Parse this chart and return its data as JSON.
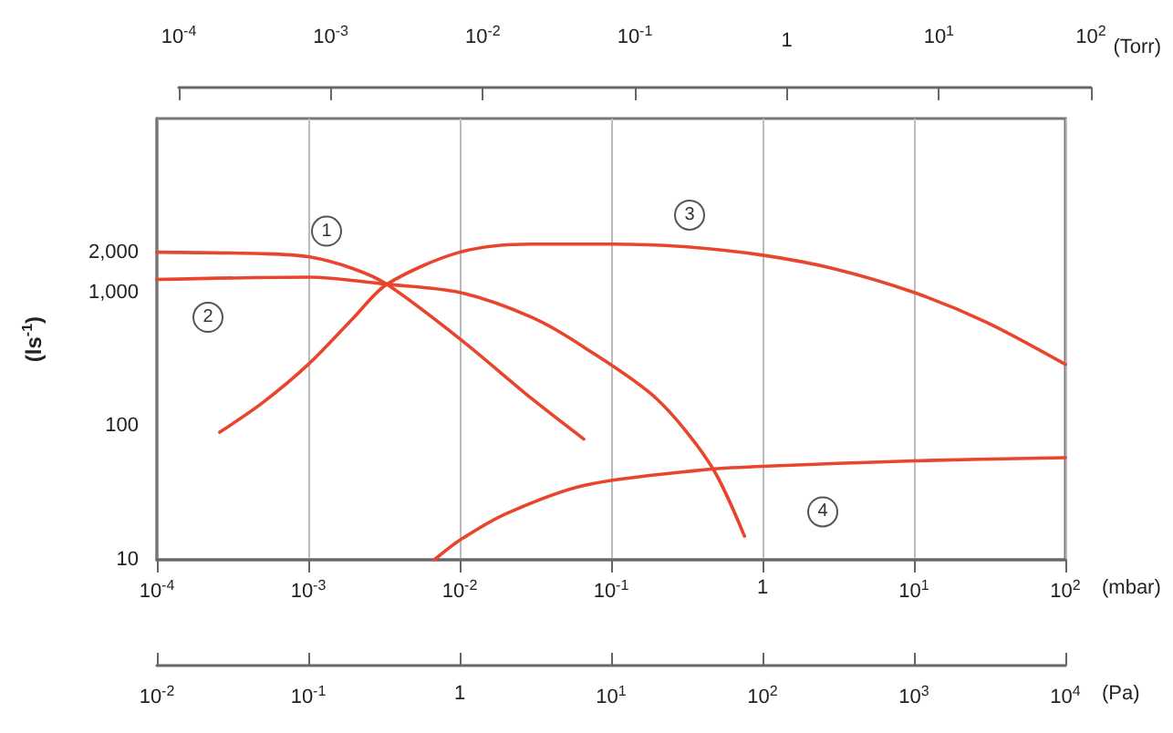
{
  "chart_data": [
    {
      "type": "other",
      "xlabel": "(Torr)",
      "annotations": [
        "10$^{-4}$",
        "10$^{-3}$",
        "10$^{-2}$",
        "10$^{-1}$",
        "1",
        "10$^{1}$",
        "10$^{2}$"
      ]
    },
    {
      "type": "line",
      "xlabel": "(mbar)",
      "ylabel": "(ls$^{-1}$)",
      "log": "xy",
      "grid": "x",
      "legend": false,
      "marker": "none",
      "line_style": "solid",
      "xlim": [
        0.0001,
        100
      ],
      "xticks": [
        {
          "value": 0.0001,
          "label": "10$^{-4}$"
        },
        {
          "value": 0.001,
          "label": "10$^{-3}$"
        },
        {
          "value": 0.01,
          "label": "10$^{-2}$"
        },
        {
          "value": 0.1,
          "label": "10$^{-1}$"
        },
        1,
        {
          "value": 10,
          "label": "10$^{1}$"
        },
        {
          "value": 100,
          "label": "10$^{2}$"
        }
      ],
      "ylim": [
        10,
        20000
      ],
      "yticks": [
        10,
        100,
        {
          "value": 1000,
          "label": "1,000"
        },
        {
          "value": 2000,
          "label": "2,000"
        }
      ],
      "series": [
        {
          "name": "1",
          "color": "#e8452c",
          "x": [
            0.0001,
            0.0005,
            0.001,
            0.002,
            0.0033,
            0.01,
            0.03,
            0.066
          ],
          "values": [
            2000,
            1950,
            1850,
            1500,
            1150,
            450,
            160,
            80
          ]
        },
        {
          "name": "2",
          "color": "#e8452c",
          "x": [
            0.0001,
            0.001,
            0.0033,
            0.01,
            0.03,
            0.066,
            0.2,
            0.46,
            0.76
          ],
          "values": [
            1250,
            1300,
            1150,
            1000,
            650,
            390,
            160,
            50,
            15
          ]
        },
        {
          "name": "3",
          "color": "#e8452c",
          "x": [
            0.00026,
            0.0005,
            0.001,
            0.002,
            0.0033,
            0.01,
            0.03,
            0.1,
            0.3,
            1,
            3,
            10,
            30,
            100
          ],
          "values": [
            90,
            150,
            290,
            650,
            1150,
            2000,
            2300,
            2300,
            2200,
            1900,
            1500,
            1000,
            600,
            290
          ]
        },
        {
          "name": "4",
          "color": "#e8452c",
          "x": [
            0.0068,
            0.01,
            0.02,
            0.066,
            0.4,
            1,
            10,
            100
          ],
          "values": [
            10,
            14,
            22,
            36,
            47,
            50,
            55,
            58
          ]
        }
      ]
    },
    {
      "type": "other",
      "xlabel": "(Pa)",
      "annotations": [
        "10$^{-2}$",
        "10$^{-1}$",
        "1",
        "10$^{1}$",
        "10$^{2}$",
        "10$^{3}$",
        "10$^{4}$"
      ]
    }
  ]
}
